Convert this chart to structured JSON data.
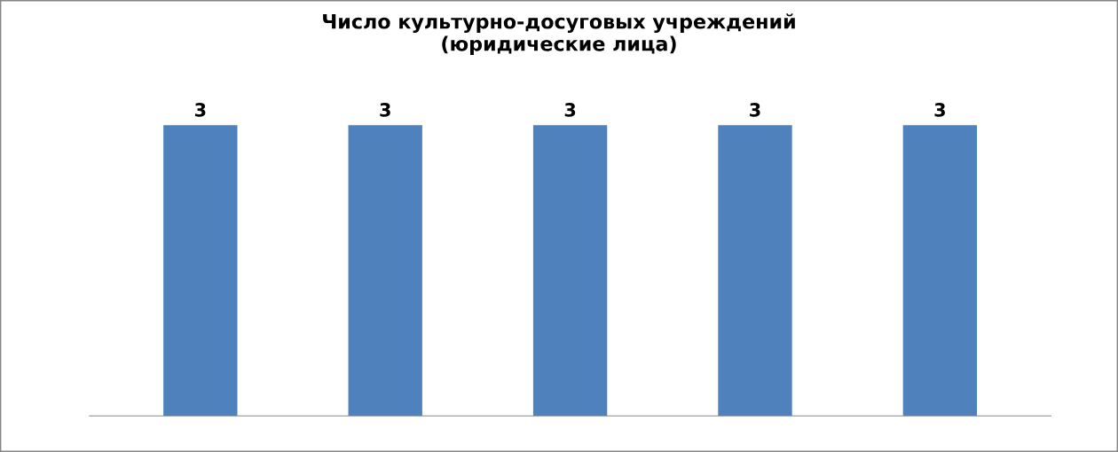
{
  "chart_data": {
    "type": "bar",
    "title": "Число культурно-досуговых учреждений\n(юридические лица)",
    "categories": [
      null,
      null,
      null,
      null,
      null
    ],
    "values": [
      3,
      3,
      3,
      3,
      3
    ],
    "color": "#4f81bd",
    "data_labels": true
  }
}
